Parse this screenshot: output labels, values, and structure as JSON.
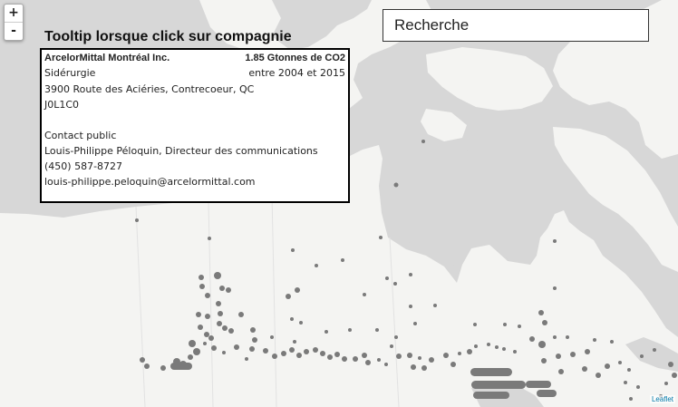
{
  "map": {
    "zoom_in_label": "+",
    "zoom_out_label": "-",
    "attribution": "Leaflet",
    "land_color": "#f4f4f2",
    "water_color": "#d7d7d7",
    "marker_color": "#7a7a7a"
  },
  "search": {
    "value": "Recherche"
  },
  "tooltip": {
    "heading": "Tooltip lorsque click sur compagnie",
    "company": "ArcelorMittal Montréal Inc.",
    "emissions": "1.85 Gtonnes de CO2",
    "period": "entre 2004 et 2015",
    "sector": "Sidérurgie",
    "address": "3900 Route des Aciéries, Contrecoeur, QC",
    "postal_code": "J0L1C0",
    "contact_heading": "Contact public",
    "contact_name": "Louis-Philippe Péloquin, Directeur des communications",
    "phone": "(450) 587-8727",
    "email": "louis-philippe.peloquin@arcelormittal.com"
  }
}
